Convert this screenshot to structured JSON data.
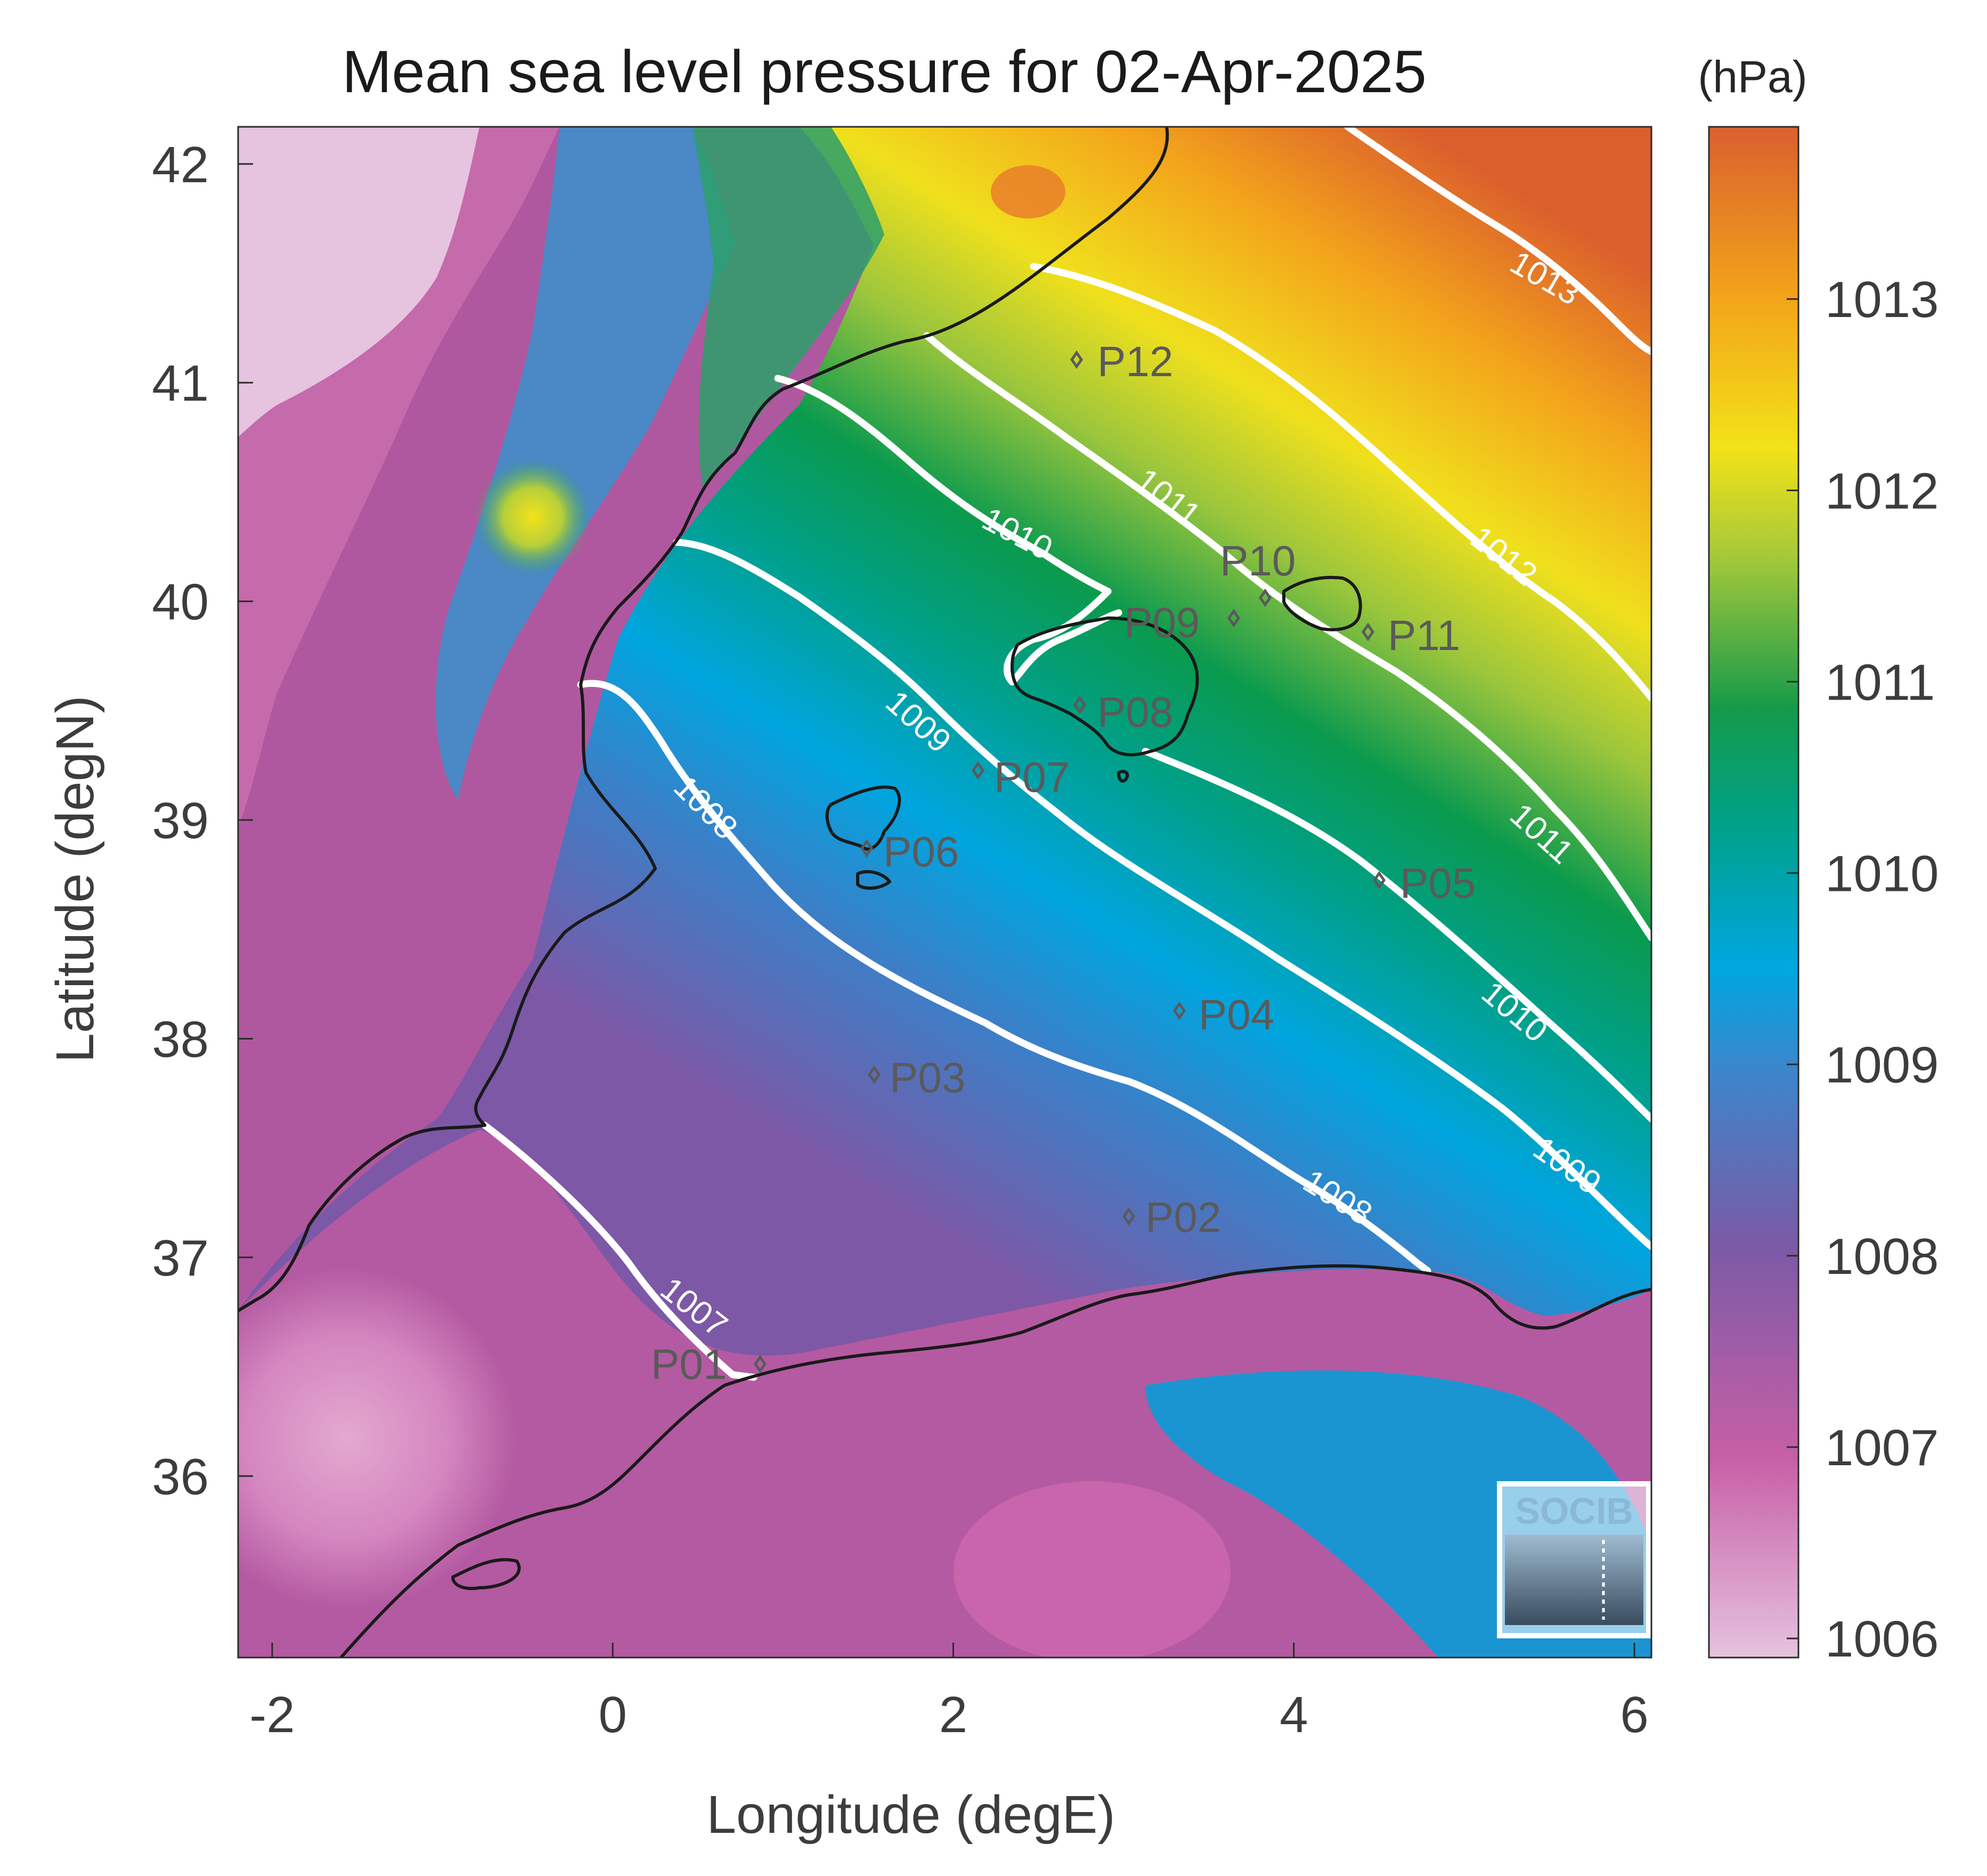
{
  "map": {
    "title": "Mean sea level pressure for 02-Apr-2025",
    "xlabel": "Longitude (degE)",
    "ylabel": "Latitude (degN)",
    "xlim": [
      -2.2,
      6.1
    ],
    "ylim": [
      35.17,
      42.17
    ],
    "xticks": [
      -2,
      0,
      2,
      4,
      6
    ],
    "xtick_labels": [
      "-2",
      "0",
      "2",
      "4",
      "6"
    ],
    "yticks": [
      36,
      37,
      38,
      39,
      40,
      41,
      42
    ],
    "ytick_labels": [
      "36",
      "37",
      "38",
      "39",
      "40",
      "41",
      "42"
    ],
    "grid": false,
    "field": "mean sea level pressure",
    "colormap_stops": [
      "#e6c3df",
      "#c75fa6",
      "#7b5aa6",
      "#00a6e0",
      "#00a185",
      "#e5e21c",
      "#f3a31a",
      "#de622b"
    ]
  },
  "colorbar": {
    "unit": "(hPa)",
    "range": [
      1005.9,
      1013.9
    ],
    "ticks": [
      1006,
      1007,
      1008,
      1009,
      1010,
      1011,
      1012,
      1013
    ],
    "tick_labels": [
      "1006",
      "1007",
      "1008",
      "1009",
      "1010",
      "1011",
      "1012",
      "1013"
    ]
  },
  "contours": [
    {
      "level": 1007,
      "label": "1007"
    },
    {
      "level": 1008,
      "label": "1008"
    },
    {
      "level": 1009,
      "label": "1009"
    },
    {
      "level": 1010,
      "label": "1010"
    },
    {
      "level": 1011,
      "label": "1011"
    },
    {
      "level": 1012,
      "label": "1012"
    },
    {
      "level": 1013,
      "label": "1013"
    }
  ],
  "stations": [
    {
      "label": "P01",
      "lon": 0.85,
      "lat": 36.45
    },
    {
      "label": "P02",
      "lon": 3.02,
      "lat": 37.15
    },
    {
      "label": "P03",
      "lon": 1.52,
      "lat": 37.8
    },
    {
      "label": "P04",
      "lon": 3.3,
      "lat": 38.1
    },
    {
      "label": "P05",
      "lon": 4.47,
      "lat": 38.7
    },
    {
      "label": "P06",
      "lon": 1.48,
      "lat": 38.85
    },
    {
      "label": "P07",
      "lon": 2.12,
      "lat": 39.2
    },
    {
      "label": "P08",
      "lon": 2.72,
      "lat": 39.5
    },
    {
      "label": "P09",
      "lon": 3.62,
      "lat": 39.9
    },
    {
      "label": "P10",
      "lon": 3.82,
      "lat": 39.97
    },
    {
      "label": "P11",
      "lon": 4.42,
      "lat": 39.85
    },
    {
      "label": "P12",
      "lon": 2.7,
      "lat": 41.1
    }
  ],
  "logo": {
    "text": "SOCIB"
  }
}
